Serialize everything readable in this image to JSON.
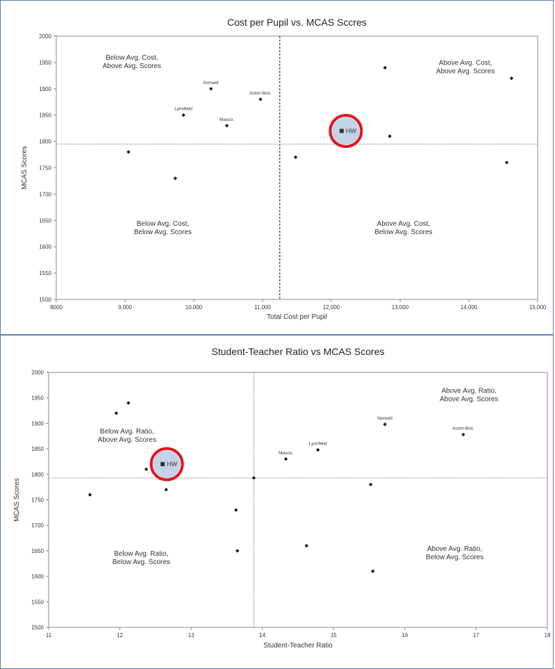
{
  "chart_data": [
    {
      "type": "scatter",
      "title": "Cost per Pupil vs. MCAS Sccres",
      "xlabel": "Total Cost per Pupil",
      "ylabel": "MCAS Scores",
      "xlim": [
        8000,
        15000
      ],
      "ylim": [
        1500,
        2000
      ],
      "x_ticks": [
        "8000",
        "9,000",
        "10,000",
        "11,000",
        "12,000",
        "13,000",
        "14,000",
        "15,000"
      ],
      "y_ticks": [
        "1500",
        "1550",
        "1600",
        "1650",
        "1700",
        "1750",
        "1800",
        "1850",
        "1900",
        "1950",
        "2000"
      ],
      "avg_x": 11250,
      "avg_y": 1795,
      "quadrant_labels": [
        {
          "line1": "Below Avg. Cost,",
          "line2": "Above Avg. Scores",
          "x": 9100,
          "y": 1955
        },
        {
          "line1": "Above Avg. Cost,",
          "line2": "Above Avg. Scores",
          "x": 13950,
          "y": 1945
        },
        {
          "line1": "Below Avg. Cost,",
          "line2": "Below Avg. Scores",
          "x": 9550,
          "y": 1640
        },
        {
          "line1": "Above Avg. Cost,",
          "line2": "Below Avg. Scores",
          "x": 13050,
          "y": 1640
        }
      ],
      "points": [
        {
          "x": 9050,
          "y": 1780,
          "label": ""
        },
        {
          "x": 9730,
          "y": 1730,
          "label": ""
        },
        {
          "x": 9850,
          "y": 1850,
          "label": "Lynnfield"
        },
        {
          "x": 10250,
          "y": 1900,
          "label": "Norwell"
        },
        {
          "x": 10480,
          "y": 1830,
          "label": "Masco."
        },
        {
          "x": 10970,
          "y": 1880,
          "label": "Acton-Box."
        },
        {
          "x": 11480,
          "y": 1770,
          "label": ""
        },
        {
          "x": 12780,
          "y": 1940,
          "label": ""
        },
        {
          "x": 12850,
          "y": 1810,
          "label": ""
        },
        {
          "x": 14550,
          "y": 1760,
          "label": ""
        },
        {
          "x": 14620,
          "y": 1920,
          "label": ""
        }
      ],
      "highlight": {
        "x": 12150,
        "y": 1820,
        "label": "HW"
      }
    },
    {
      "type": "scatter",
      "title": "Student-Teacher Ratio vs MCAS Scores",
      "xlabel": "Student-Teacher Ratio",
      "ylabel": "MCAS Scores",
      "xlim": [
        11,
        18
      ],
      "ylim": [
        1500,
        2000
      ],
      "x_ticks": [
        "11",
        "12",
        "13",
        "14",
        "15",
        "16",
        "17",
        "18"
      ],
      "y_ticks": [
        "1500",
        "1550",
        "1600",
        "1650",
        "1700",
        "1750",
        "1800",
        "1850",
        "1900",
        "1950",
        "2000"
      ],
      "avg_x": 13.88,
      "avg_y": 1793,
      "quadrant_labels": [
        {
          "line1": "Below Avg. Ratio,",
          "line2": "Above Avg. Scores",
          "x": 12.1,
          "y": 1880
        },
        {
          "line1": "Above Avg. Ratio,",
          "line2": "Above Avg. Scores",
          "x": 16.9,
          "y": 1960
        },
        {
          "line1": "Below Avg. Ratio,",
          "line2": "Below Avg. Scores",
          "x": 12.3,
          "y": 1640
        },
        {
          "line1": "Above Avg. Ratio,",
          "line2": "Below Avg. Scores",
          "x": 16.7,
          "y": 1650
        }
      ],
      "points": [
        {
          "x": 11.58,
          "y": 1760,
          "label": ""
        },
        {
          "x": 11.95,
          "y": 1920,
          "label": ""
        },
        {
          "x": 12.12,
          "y": 1940,
          "label": ""
        },
        {
          "x": 12.37,
          "y": 1810,
          "label": ""
        },
        {
          "x": 12.65,
          "y": 1770,
          "label": ""
        },
        {
          "x": 13.63,
          "y": 1730,
          "label": ""
        },
        {
          "x": 13.65,
          "y": 1650,
          "label": ""
        },
        {
          "x": 13.88,
          "y": 1793,
          "label": ""
        },
        {
          "x": 14.33,
          "y": 1830,
          "label": "Masco."
        },
        {
          "x": 14.62,
          "y": 1660,
          "label": ""
        },
        {
          "x": 14.78,
          "y": 1848,
          "label": "Lynnfield"
        },
        {
          "x": 15.52,
          "y": 1780,
          "label": ""
        },
        {
          "x": 15.55,
          "y": 1610,
          "label": ""
        },
        {
          "x": 15.72,
          "y": 1898,
          "label": "Norwell"
        },
        {
          "x": 16.82,
          "y": 1878,
          "label": "Acton-Box."
        }
      ],
      "highlight": {
        "x": 12.6,
        "y": 1820,
        "label": "HW"
      }
    }
  ],
  "colors": {
    "panel_border": "#5b7fb5",
    "highlight_fill": "#c5d3e8",
    "highlight_ring": "#e0141e",
    "marker": "#1a1a1a"
  }
}
